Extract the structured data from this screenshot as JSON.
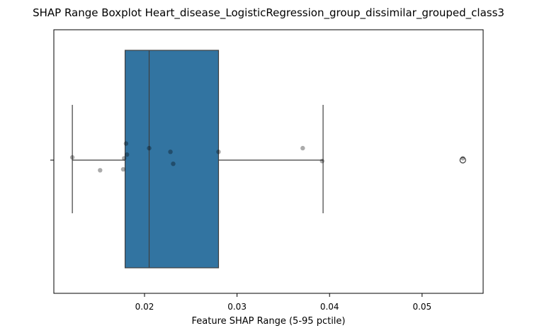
{
  "chart_data": {
    "type": "box",
    "title": "SHAP Range Boxplot Heart_disease_LogisticRegression_group_dissimilar_grouped_class3",
    "xlabel": "Feature SHAP Range (5-95 pctile)",
    "ylabel": "",
    "xlim": [
      0.0102,
      0.0566
    ],
    "x_ticks": [
      0.02,
      0.03,
      0.04,
      0.05
    ],
    "x_tick_labels": [
      "0.02",
      "0.03",
      "0.04",
      "0.05"
    ],
    "grid": false,
    "orientation": "horizontal",
    "box": {
      "whisker_low": 0.0122,
      "q1": 0.0179,
      "median": 0.0205,
      "q3": 0.028,
      "whisker_high": 0.0393,
      "outliers": [
        0.0544
      ]
    },
    "points": [
      {
        "x": 0.0122,
        "y": 0.03
      },
      {
        "x": 0.0152,
        "y": -0.11
      },
      {
        "x": 0.0177,
        "y": -0.1
      },
      {
        "x": 0.0178,
        "y": 0.02
      },
      {
        "x": 0.018,
        "y": 0.18
      },
      {
        "x": 0.0181,
        "y": 0.06
      },
      {
        "x": 0.0205,
        "y": 0.13
      },
      {
        "x": 0.0228,
        "y": 0.09
      },
      {
        "x": 0.0231,
        "y": -0.04
      },
      {
        "x": 0.028,
        "y": 0.09
      },
      {
        "x": 0.0371,
        "y": 0.13
      },
      {
        "x": 0.0392,
        "y": -0.01
      },
      {
        "x": 0.0544,
        "y": 0.02
      }
    ],
    "colors": {
      "box_fill": "#3274a1",
      "box_line": "#3f3f3f",
      "point_fill": "#000000",
      "frame": "#000000"
    }
  }
}
